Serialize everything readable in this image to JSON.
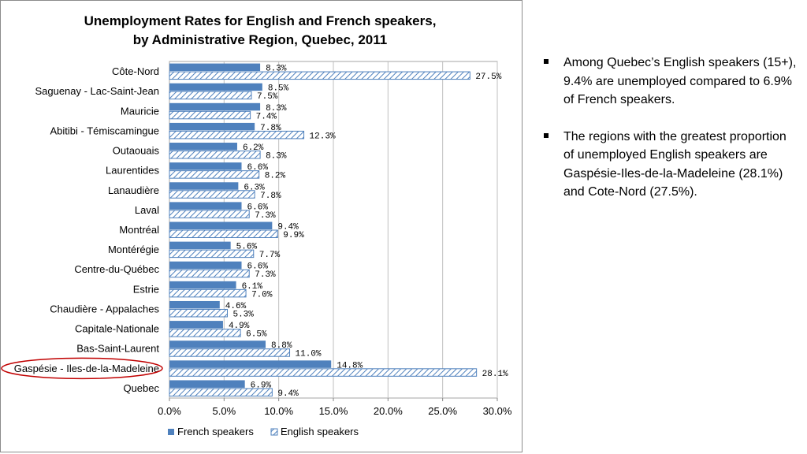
{
  "chart_data": {
    "type": "bar",
    "orientation": "horizontal",
    "title_lines": [
      "Unemployment Rates for English and French speakers,",
      "by Administrative Region, Quebec, 2011"
    ],
    "categories": [
      "Côte-Nord",
      "Saguenay - Lac-Saint-Jean",
      "Mauricie",
      "Abitibi - Témiscamingue",
      "Outaouais",
      "Laurentides",
      "Lanaudière",
      "Laval",
      "Montréal",
      "Montérégie",
      "Centre-du-Québec",
      "Estrie",
      "Chaudière - Appalaches",
      "Capitale-Nationale",
      "Bas-Saint-Laurent",
      "Gaspésie - Iles-de-la-Madeleine",
      "Quebec"
    ],
    "series": [
      {
        "name": "French speakers",
        "values": [
          8.3,
          8.5,
          8.3,
          7.8,
          6.2,
          6.6,
          6.3,
          6.6,
          9.4,
          5.6,
          6.6,
          6.1,
          4.6,
          4.9,
          8.8,
          14.8,
          6.9
        ],
        "labels": [
          "8.3%",
          "8.5%",
          "8.3%",
          "7.8%",
          "6.2%",
          "6.6%",
          "6.3%",
          "6.6%",
          "9.4%",
          "5.6%",
          "6.6%",
          "6.1%",
          "4.6%",
          "4.9%",
          "8.8%",
          "14.8%",
          "6.9%"
        ],
        "color": "#4f81bd",
        "pattern": "solid"
      },
      {
        "name": "English speakers",
        "values": [
          27.5,
          7.5,
          7.4,
          12.3,
          8.3,
          8.2,
          7.8,
          7.3,
          9.9,
          7.7,
          7.3,
          7.0,
          5.3,
          6.5,
          11.0,
          28.1,
          9.4
        ],
        "labels": [
          "27.5%",
          "7.5%",
          "7.4%",
          "12.3%",
          "8.3%",
          "8.2%",
          "7.8%",
          "7.3%",
          "9.9%",
          "7.7%",
          "7.3%",
          "7.0%",
          "5.3%",
          "6.5%",
          "11.0%",
          "28.1%",
          "9.4%"
        ],
        "color": "#4f81bd",
        "pattern": "hatched"
      }
    ],
    "x_ticks": [
      "0.0%",
      "5.0%",
      "10.0%",
      "15.0%",
      "20.0%",
      "25.0%",
      "30.0%"
    ],
    "xlim": [
      0,
      30
    ],
    "grid": true,
    "legend_position": "bottom",
    "highlighted_category": "Gaspésie - Iles-de-la-Madeleine",
    "highlight_color": "#c00000"
  },
  "bullets": [
    "Among Quebec’s English speakers (15+), 9.4% are unemployed compared to 6.9% of French speakers.",
    "The regions with the greatest proportion of unemployed English speakers are Gaspésie-Iles-de-la-Madeleine (28.1%) and Cote-Nord (27.5%)."
  ]
}
